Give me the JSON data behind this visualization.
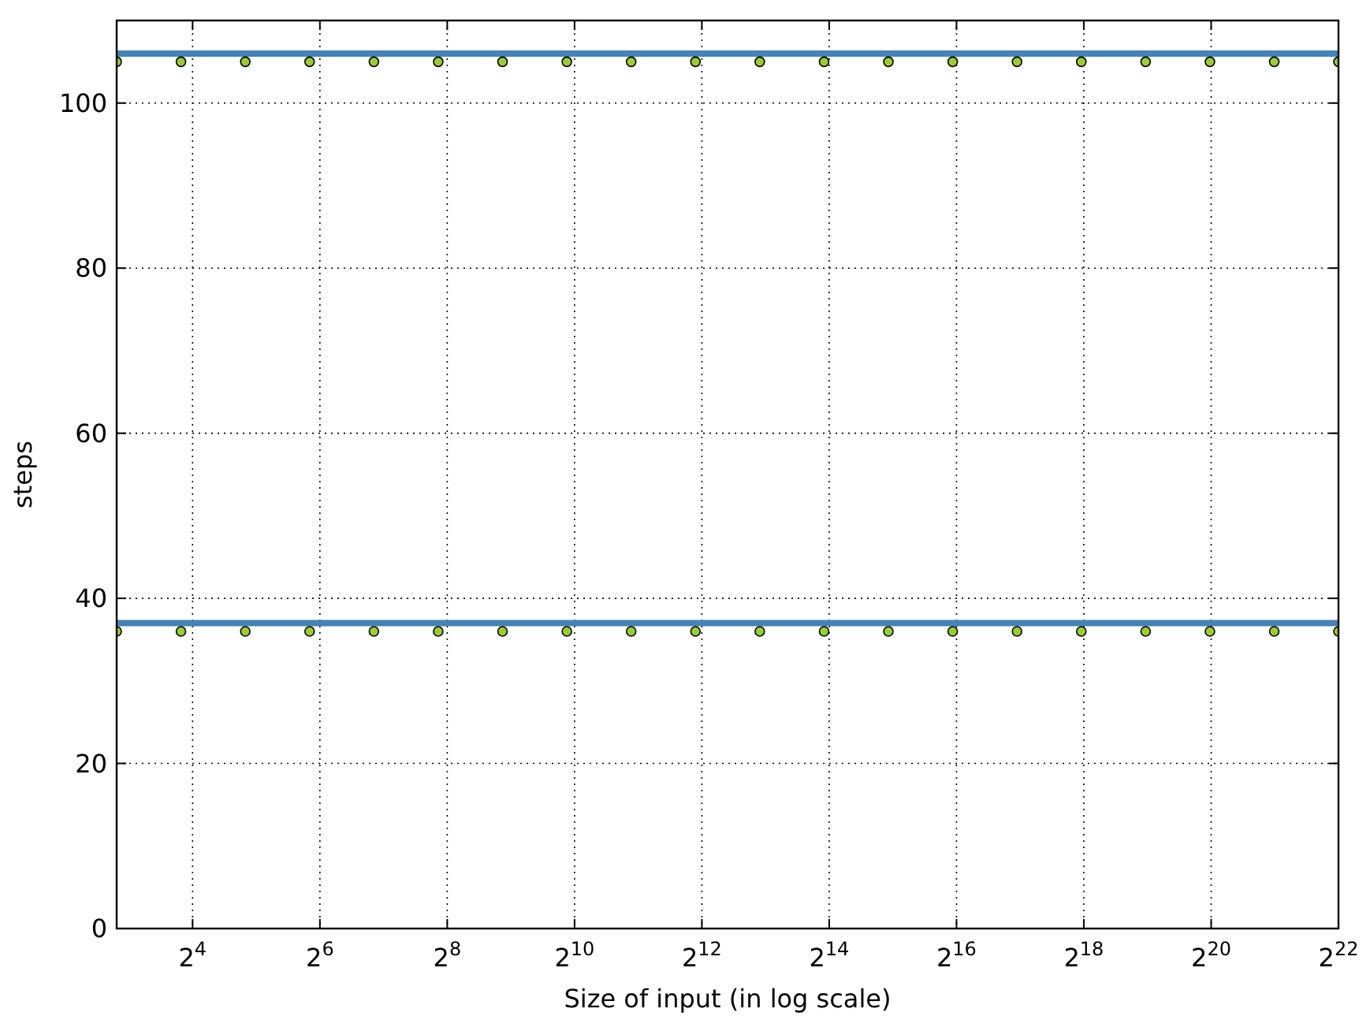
{
  "chart_data": {
    "type": "scatter",
    "xlabel": "Size of input (in log scale)",
    "ylabel": "steps",
    "log": "x",
    "grid": true,
    "xlim": [
      7,
      4194304
    ],
    "ylim": [
      0,
      110
    ],
    "xticks": [
      {
        "value": 16,
        "label": "2$^{4}$"
      },
      {
        "value": 64,
        "label": "2$^{6}$"
      },
      {
        "value": 256,
        "label": "2$^{8}$"
      },
      {
        "value": 1024,
        "label": "2$^{10}$"
      },
      {
        "value": 4096,
        "label": "2$^{12}$"
      },
      {
        "value": 16384,
        "label": "2$^{14}$"
      },
      {
        "value": 65536,
        "label": "2$^{16}$"
      },
      {
        "value": 262144,
        "label": "2$^{18}$"
      },
      {
        "value": 1048576,
        "label": "2$^{20}$"
      },
      {
        "value": 4194304,
        "label": "2$^{22}$"
      }
    ],
    "yticks": [
      0,
      20,
      40,
      60,
      80,
      100
    ],
    "series": [
      {
        "type": "line",
        "color": "#4682b4",
        "marker": "none",
        "x": [
          7,
          4194304
        ],
        "values": [
          106,
          106
        ]
      },
      {
        "type": "line",
        "color": "#4682b4",
        "marker": "none",
        "x": [
          7,
          4194304
        ],
        "values": [
          37,
          37
        ]
      },
      {
        "color": "#9acd32",
        "marker": "circle",
        "x": [
          7,
          14.1,
          28.4,
          57.2,
          115.2,
          232.1,
          467.5,
          941.6,
          1897,
          3820,
          7694,
          15498,
          31215,
          62873,
          126637,
          255072,
          513752,
          1034790,
          2084240,
          4194304
        ],
        "values": [
          105,
          105,
          105,
          105,
          105,
          105,
          105,
          105,
          105,
          105,
          105,
          105,
          105,
          105,
          105,
          105,
          105,
          105,
          105,
          105
        ]
      },
      {
        "color": "#9acd32",
        "marker": "circle",
        "x": [
          7,
          14.1,
          28.4,
          57.2,
          115.2,
          232.1,
          467.5,
          941.6,
          1897,
          3820,
          7694,
          15498,
          31215,
          62873,
          126637,
          255072,
          513752,
          1034790,
          2084240,
          4194304
        ],
        "values": [
          36,
          36,
          36,
          36,
          36,
          36,
          36,
          36,
          36,
          36,
          36,
          36,
          36,
          36,
          36,
          36,
          36,
          36,
          36,
          36
        ]
      }
    ]
  }
}
